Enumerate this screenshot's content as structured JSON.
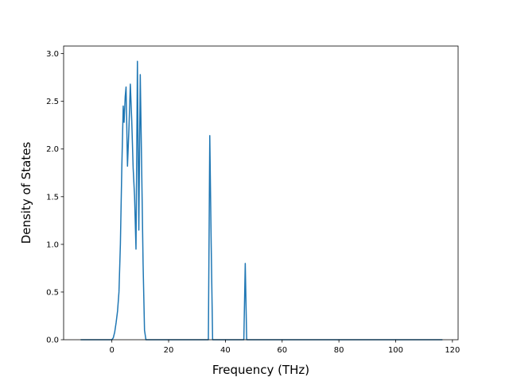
{
  "chart_data": {
    "type": "line",
    "title": "",
    "xlabel": "Frequency (THz)",
    "ylabel": "Density of States",
    "xlim": [
      -17,
      122
    ],
    "ylim": [
      0.0,
      3.08
    ],
    "xticks": [
      0,
      20,
      40,
      60,
      80,
      100,
      120
    ],
    "yticks": [
      0.0,
      0.5,
      1.0,
      1.5,
      2.0,
      2.5,
      3.0
    ],
    "xtick_labels": [
      "0",
      "20",
      "40",
      "60",
      "80",
      "100",
      "120"
    ],
    "ytick_labels": [
      "0.0",
      "0.5",
      "1.0",
      "1.5",
      "2.0",
      "2.5",
      "3.0"
    ],
    "grid": false,
    "line_color": "#1f77b4",
    "series": [
      {
        "x": [
          -11,
          0,
          0.5,
          1,
          1.5,
          2,
          2.5,
          3,
          3.5,
          4,
          4.3,
          4.7,
          5,
          5.5,
          6,
          6.5,
          7,
          7.5,
          8,
          8.5,
          9,
          9.5,
          10,
          10.5,
          11,
          11.5,
          12,
          12.3,
          34,
          34.5,
          35,
          35.5,
          46.5,
          47,
          47.5,
          116.5
        ],
        "y": [
          0,
          0,
          0.02,
          0.08,
          0.18,
          0.3,
          0.5,
          1.0,
          1.8,
          2.45,
          2.28,
          2.55,
          2.65,
          1.82,
          2.2,
          2.68,
          2.3,
          1.8,
          1.5,
          0.95,
          2.92,
          1.15,
          2.78,
          1.8,
          0.8,
          0.1,
          0,
          0,
          0,
          2.14,
          1.0,
          0,
          0,
          0.8,
          0,
          0
        ]
      }
    ]
  }
}
